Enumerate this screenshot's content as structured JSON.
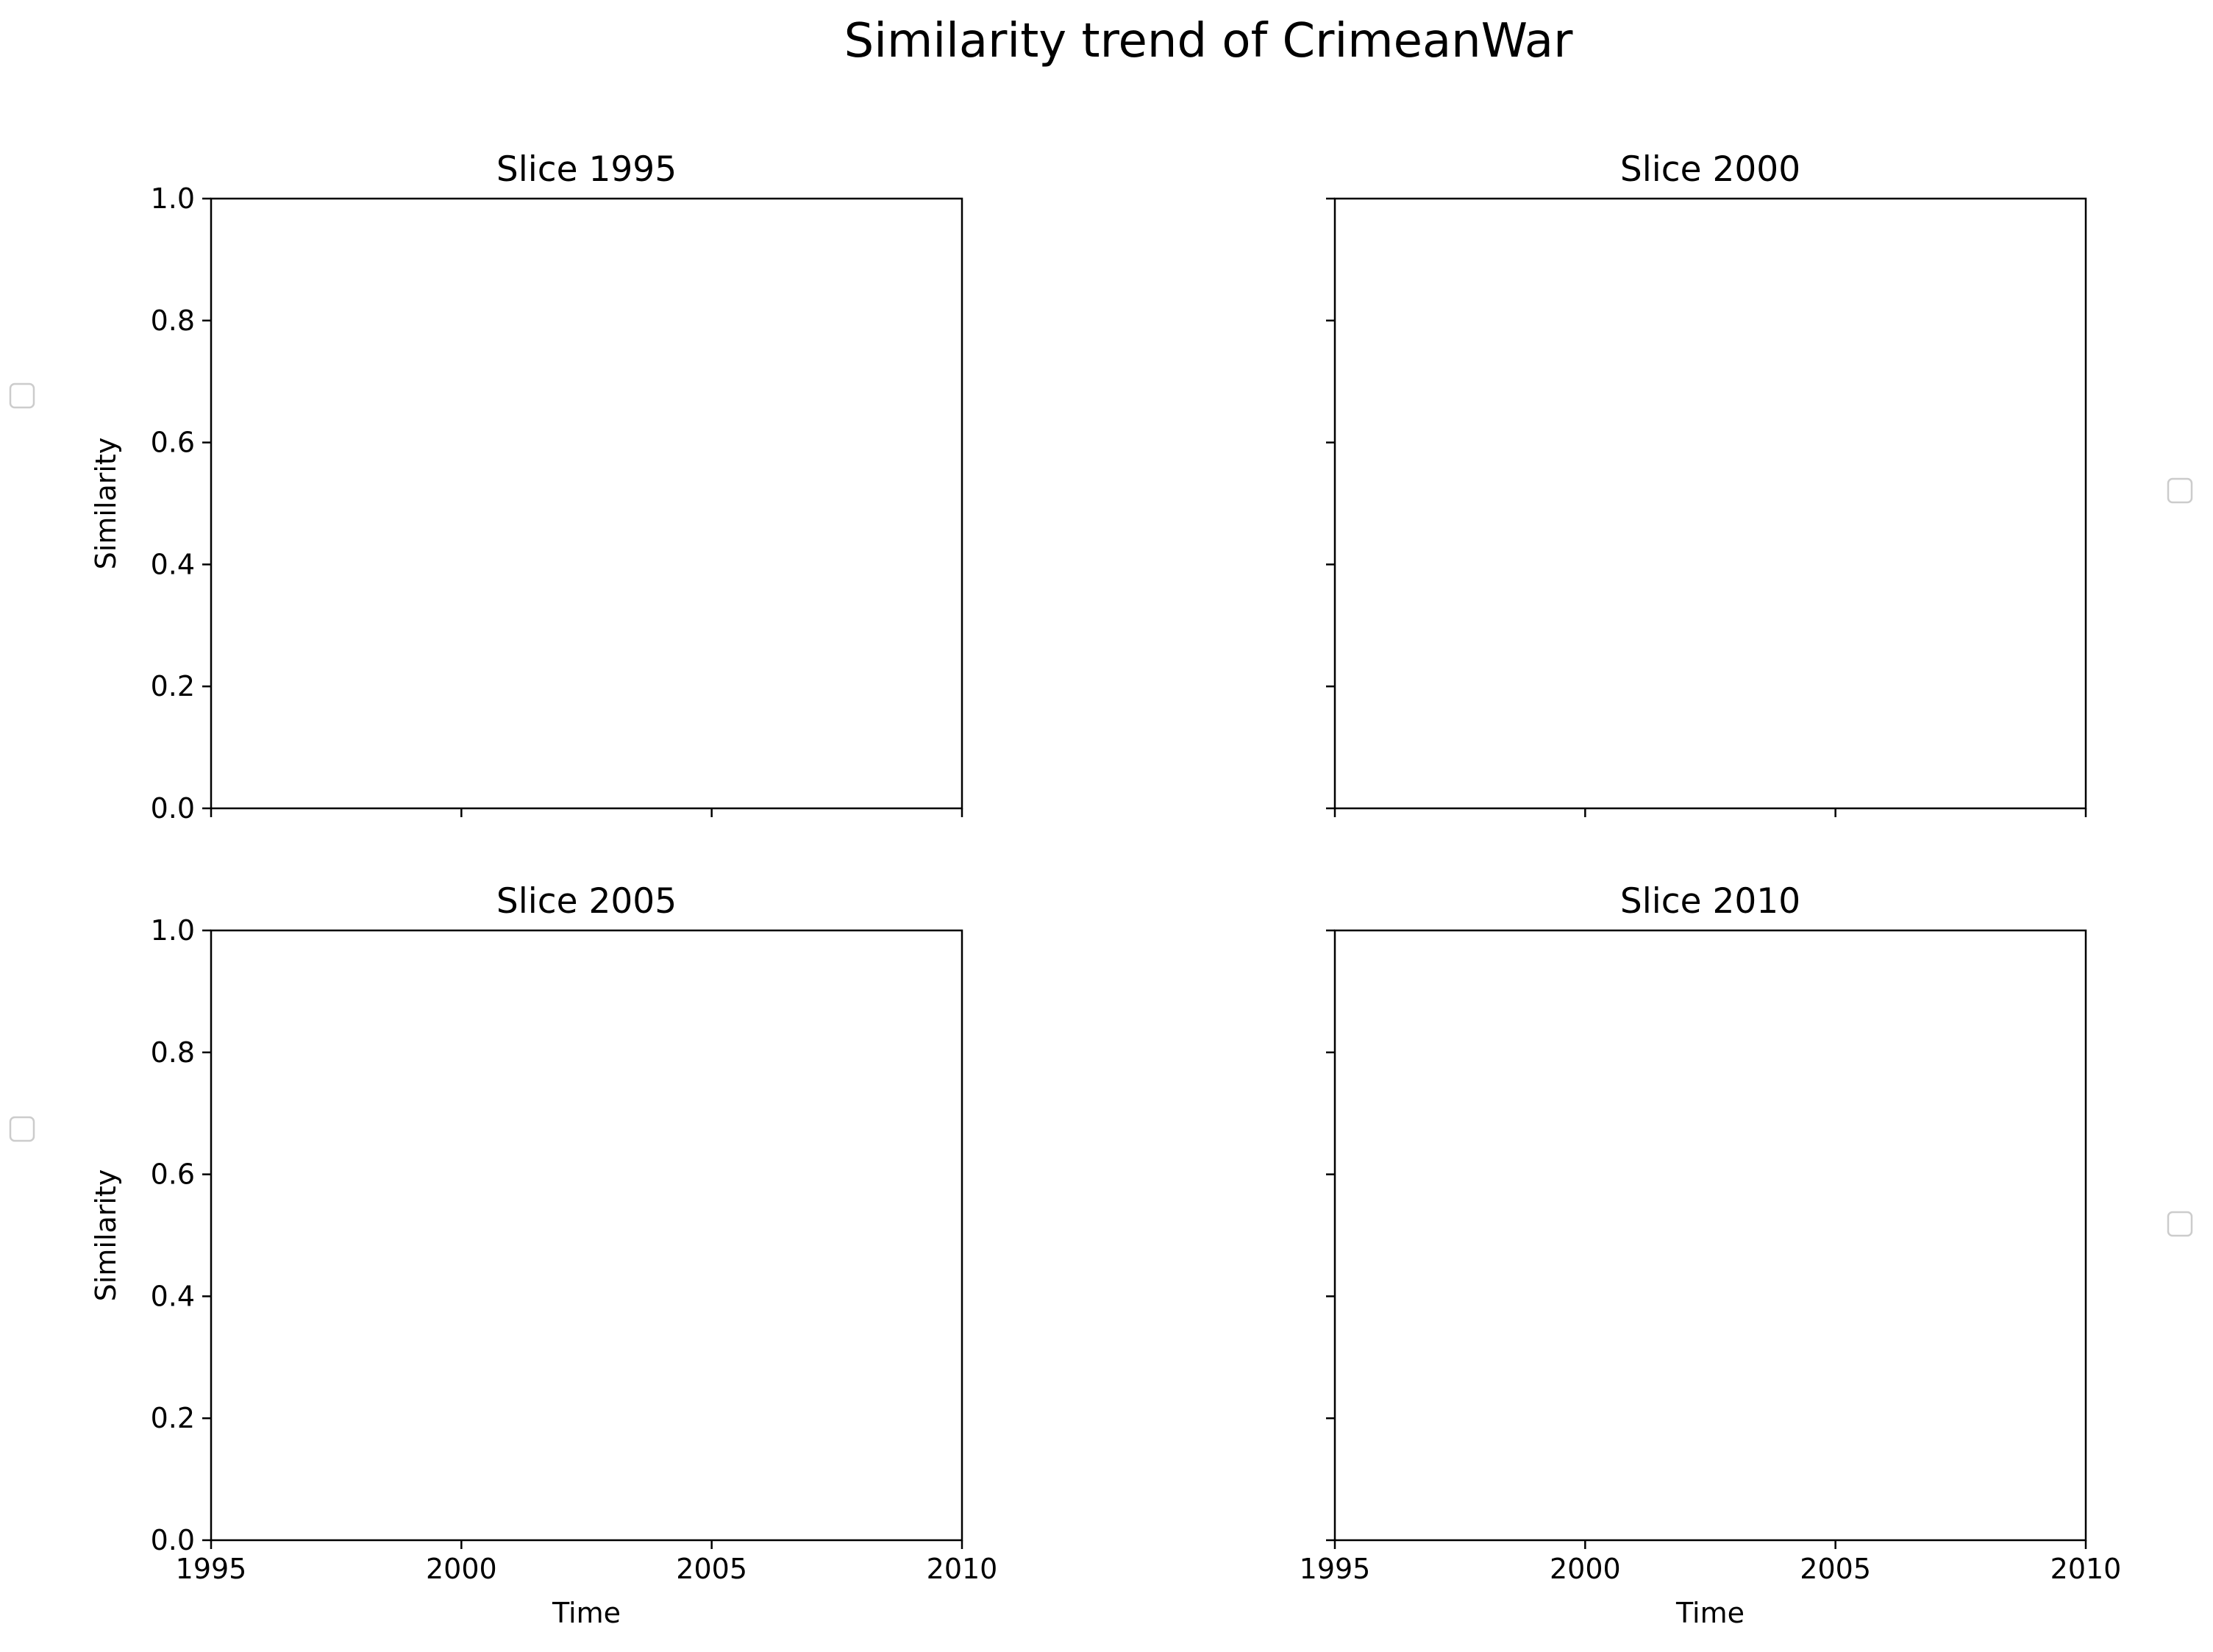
{
  "chart_data": {
    "type": "line",
    "title": "Similarity trend of CrimeanWar",
    "layout": "2x2 grid",
    "sharex": true,
    "sharey": true,
    "panels": [
      {
        "title": "Slice 1995",
        "xlabel": "",
        "ylabel": "Similarity",
        "xlim": [
          1995,
          2010
        ],
        "ylim": [
          0.0,
          1.0
        ],
        "xticks": [
          1995,
          2000,
          2005,
          2010
        ],
        "yticks": [
          0.0,
          0.2,
          0.4,
          0.6,
          0.8,
          1.0
        ],
        "show_x_tick_labels": false,
        "show_y_tick_labels": true,
        "series": [],
        "legend": "empty, left of panel"
      },
      {
        "title": "Slice 2000",
        "xlabel": "",
        "ylabel": "",
        "xlim": [
          1995,
          2010
        ],
        "ylim": [
          0.0,
          1.0
        ],
        "xticks": [
          1995,
          2000,
          2005,
          2010
        ],
        "yticks": [
          0.0,
          0.2,
          0.4,
          0.6,
          0.8,
          1.0
        ],
        "show_x_tick_labels": false,
        "show_y_tick_labels": false,
        "series": [],
        "legend": "empty, right of panel"
      },
      {
        "title": "Slice 2005",
        "xlabel": "Time",
        "ylabel": "Similarity",
        "xlim": [
          1995,
          2010
        ],
        "ylim": [
          0.0,
          1.0
        ],
        "xticks": [
          1995,
          2000,
          2005,
          2010
        ],
        "yticks": [
          0.0,
          0.2,
          0.4,
          0.6,
          0.8,
          1.0
        ],
        "show_x_tick_labels": true,
        "show_y_tick_labels": true,
        "series": [],
        "legend": "empty, left of panel"
      },
      {
        "title": "Slice 2010",
        "xlabel": "Time",
        "ylabel": "",
        "xlim": [
          1995,
          2010
        ],
        "ylim": [
          0.0,
          1.0
        ],
        "xticks": [
          1995,
          2000,
          2005,
          2010
        ],
        "yticks": [
          0.0,
          0.2,
          0.4,
          0.6,
          0.8,
          1.0
        ],
        "show_x_tick_labels": true,
        "show_y_tick_labels": false,
        "series": [],
        "legend": "empty, right of panel"
      }
    ]
  }
}
